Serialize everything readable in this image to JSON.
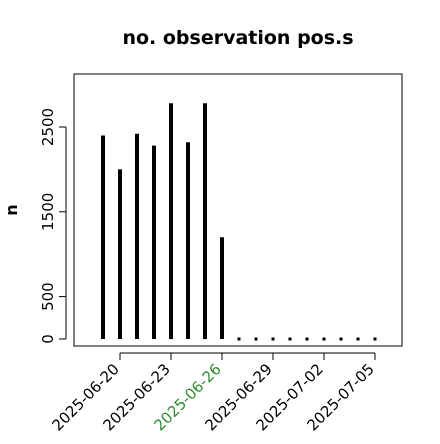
{
  "chart_data": {
    "type": "bar",
    "title": "no. observation pos.s",
    "xlabel": "",
    "ylabel": "n",
    "ylim": [
      0,
      2900
    ],
    "yticks": [
      0,
      500,
      1500,
      2500
    ],
    "grid": false,
    "x_dates": [
      "2025-06-19",
      "2025-06-20",
      "2025-06-21",
      "2025-06-22",
      "2025-06-23",
      "2025-06-24",
      "2025-06-25",
      "2025-06-26",
      "2025-06-27",
      "2025-06-28",
      "2025-06-29",
      "2025-06-30",
      "2025-07-01",
      "2025-07-02",
      "2025-07-03",
      "2025-07-04",
      "2025-07-05"
    ],
    "values": [
      2400,
      2000,
      2420,
      2280,
      2780,
      2320,
      2780,
      1200,
      0,
      0,
      0,
      0,
      0,
      0,
      0,
      0,
      0
    ],
    "xtick_labels": [
      "2025-06-20",
      "2025-06-23",
      "2025-06-26",
      "2025-06-29",
      "2025-07-02",
      "2025-07-05"
    ],
    "highlight_tick": "2025-06-26",
    "colors": {
      "bars": "#000000",
      "axis": "#000000",
      "highlight_tick": "#2e8b2e"
    }
  }
}
